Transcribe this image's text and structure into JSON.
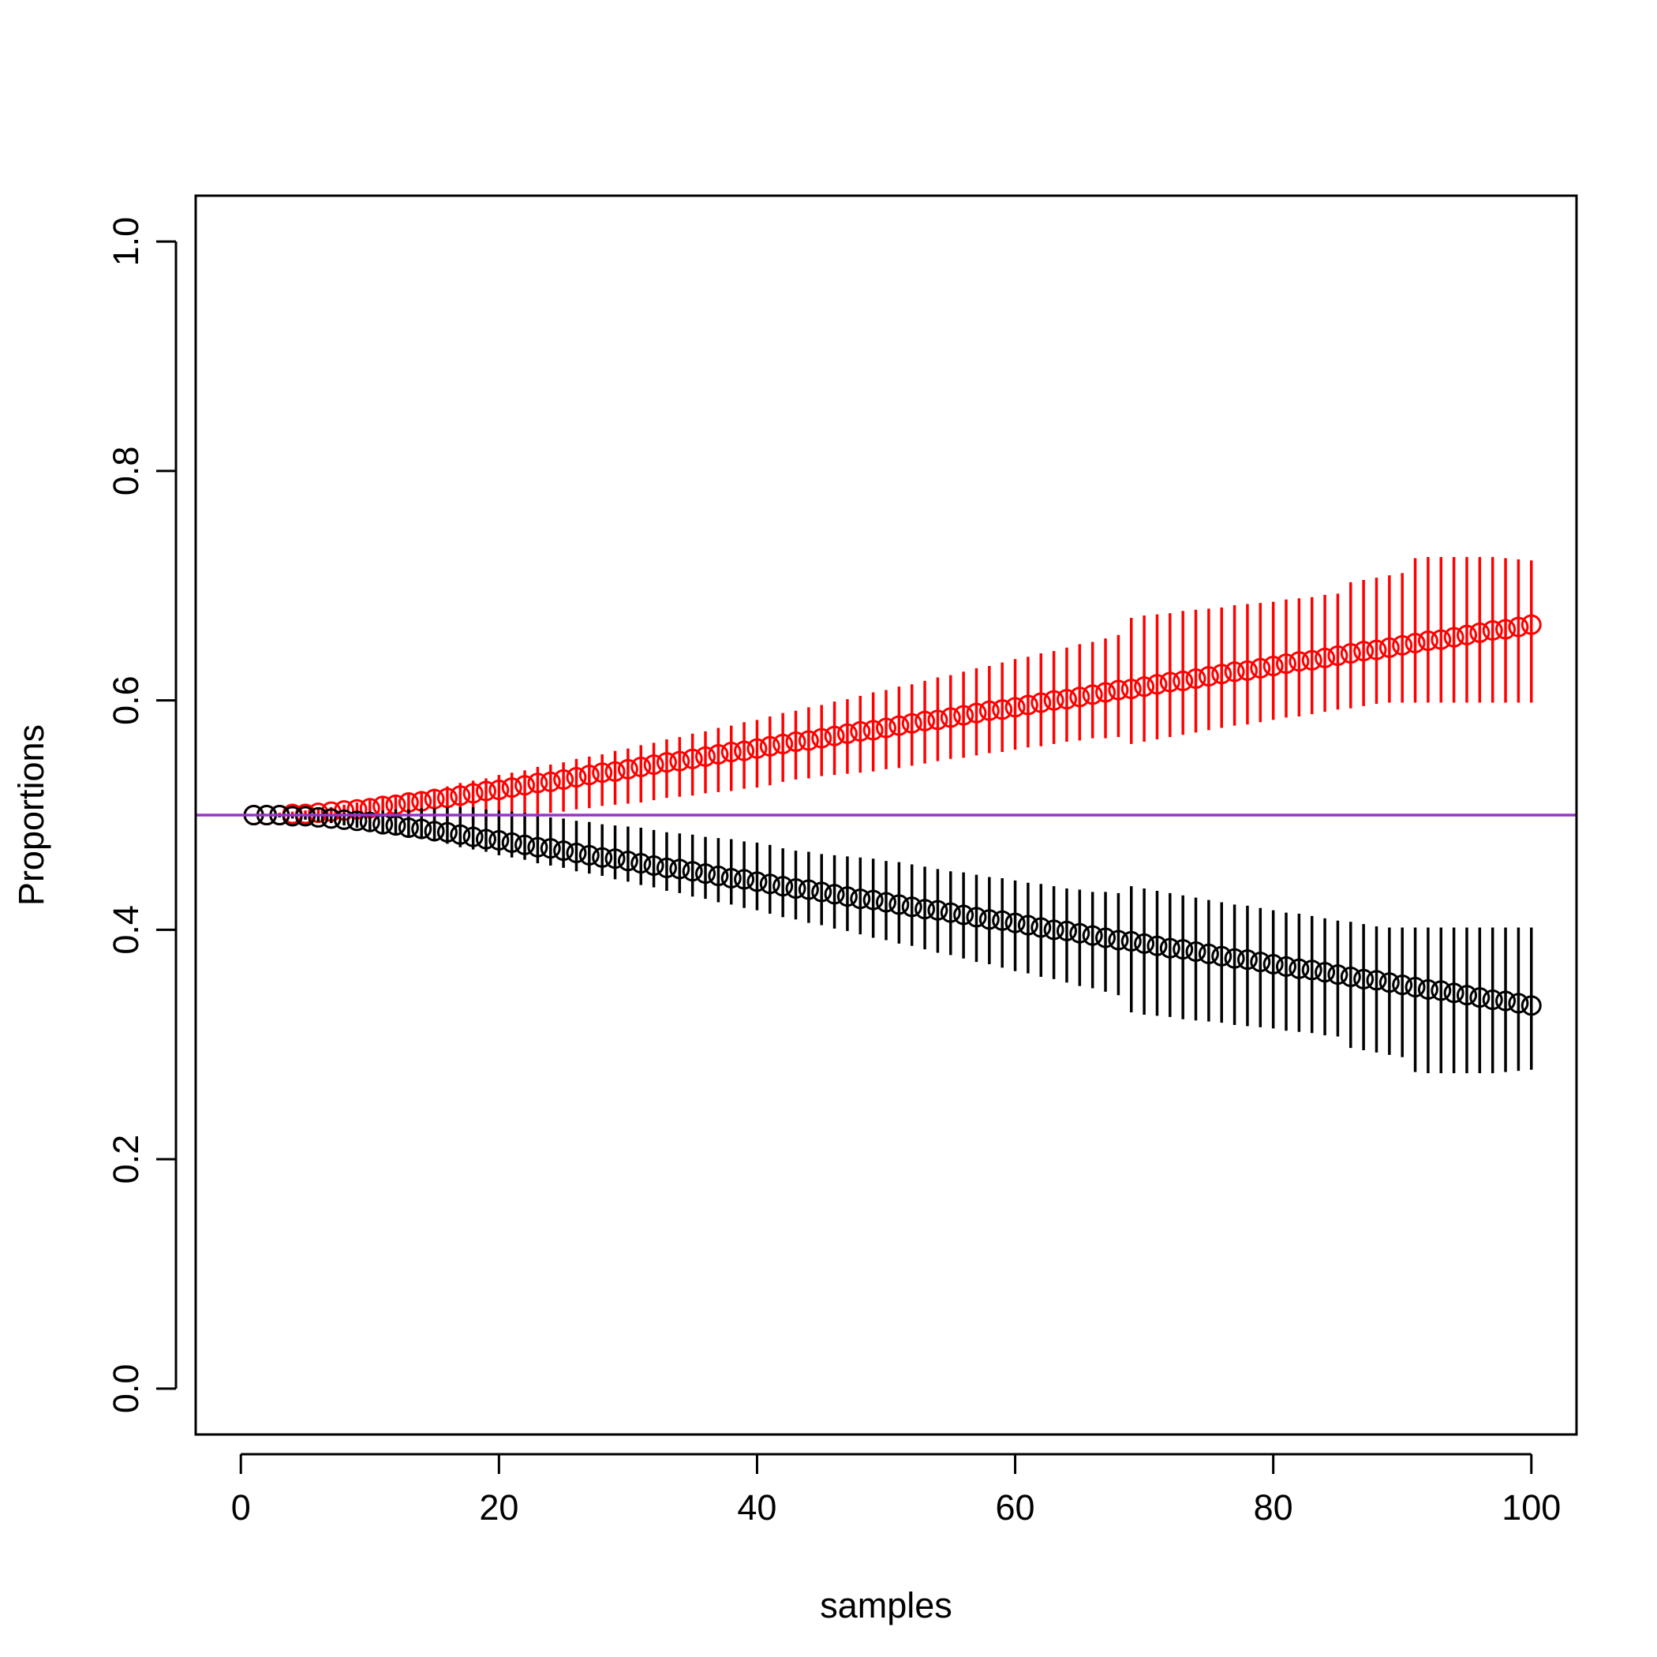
{
  "chart_data": {
    "type": "scatter",
    "title": "",
    "xlabel": "samples",
    "ylabel": "Proportions",
    "xlim": [
      -3.5,
      103.5
    ],
    "ylim": [
      -0.04,
      1.04
    ],
    "x_ticks": [
      0,
      20,
      40,
      60,
      80,
      100
    ],
    "y_ticks": [
      0.0,
      0.2,
      0.4,
      0.6,
      0.8,
      1.0
    ],
    "x_tick_labels": [
      "0",
      "20",
      "40",
      "60",
      "80",
      "100"
    ],
    "y_tick_labels": [
      "0.0",
      "0.2",
      "0.4",
      "0.6",
      "0.8",
      "1.0"
    ],
    "grid": false,
    "legend": "none",
    "reference_line": {
      "orientation": "horizontal",
      "y": 0.5,
      "color": "#9933cc"
    },
    "x": [
      1,
      2,
      3,
      4,
      5,
      6,
      7,
      8,
      9,
      10,
      11,
      12,
      13,
      14,
      15,
      16,
      17,
      18,
      19,
      20,
      21,
      22,
      23,
      24,
      25,
      26,
      27,
      28,
      29,
      30,
      31,
      32,
      33,
      34,
      35,
      36,
      37,
      38,
      39,
      40,
      41,
      42,
      43,
      44,
      45,
      46,
      47,
      48,
      49,
      50,
      51,
      52,
      53,
      54,
      55,
      56,
      57,
      58,
      59,
      60,
      61,
      62,
      63,
      64,
      65,
      66,
      67,
      68,
      69,
      70,
      71,
      72,
      73,
      74,
      75,
      76,
      77,
      78,
      79,
      80,
      81,
      82,
      83,
      84,
      85,
      86,
      87,
      88,
      89,
      90,
      91,
      92,
      93,
      94,
      95,
      96,
      97,
      98,
      99,
      100
    ],
    "series": [
      {
        "color": "#ff0000",
        "marker": "open-circle",
        "y": [
          0.5,
          0.5,
          0.5,
          0.501,
          0.501,
          0.502,
          0.503,
          0.504,
          0.505,
          0.506,
          0.508,
          0.509,
          0.511,
          0.512,
          0.514,
          0.515,
          0.517,
          0.519,
          0.521,
          0.522,
          0.524,
          0.526,
          0.528,
          0.529,
          0.531,
          0.533,
          0.535,
          0.537,
          0.538,
          0.54,
          0.542,
          0.544,
          0.546,
          0.547,
          0.549,
          0.551,
          0.553,
          0.555,
          0.556,
          0.558,
          0.56,
          0.562,
          0.564,
          0.565,
          0.567,
          0.569,
          0.571,
          0.573,
          0.574,
          0.576,
          0.578,
          0.58,
          0.582,
          0.583,
          0.585,
          0.587,
          0.589,
          0.591,
          0.592,
          0.594,
          0.596,
          0.598,
          0.6,
          0.601,
          0.603,
          0.605,
          0.607,
          0.609,
          0.61,
          0.612,
          0.614,
          0.616,
          0.617,
          0.619,
          0.621,
          0.623,
          0.625,
          0.626,
          0.628,
          0.63,
          0.632,
          0.634,
          0.635,
          0.637,
          0.639,
          0.641,
          0.643,
          0.644,
          0.646,
          0.648,
          0.65,
          0.652,
          0.653,
          0.655,
          0.657,
          0.659,
          0.661,
          0.662,
          0.664,
          0.666
        ],
        "lower": [
          0.5,
          0.5,
          0.5,
          0.5,
          0.499,
          0.499,
          0.499,
          0.498,
          0.497,
          0.497,
          0.496,
          0.495,
          0.495,
          0.494,
          0.494,
          0.493,
          0.493,
          0.493,
          0.495,
          0.496,
          0.497,
          0.498,
          0.5,
          0.502,
          0.503,
          0.505,
          0.506,
          0.508,
          0.509,
          0.51,
          0.511,
          0.513,
          0.515,
          0.516,
          0.517,
          0.519,
          0.52,
          0.521,
          0.523,
          0.524,
          0.526,
          0.529,
          0.531,
          0.532,
          0.534,
          0.535,
          0.536,
          0.537,
          0.538,
          0.54,
          0.541,
          0.543,
          0.545,
          0.547,
          0.549,
          0.55,
          0.552,
          0.554,
          0.555,
          0.557,
          0.559,
          0.56,
          0.562,
          0.564,
          0.565,
          0.567,
          0.567,
          0.568,
          0.562,
          0.564,
          0.566,
          0.568,
          0.57,
          0.572,
          0.574,
          0.576,
          0.578,
          0.579,
          0.581,
          0.583,
          0.585,
          0.586,
          0.588,
          0.59,
          0.592,
          0.593,
          0.595,
          0.597,
          0.598,
          0.598,
          0.598,
          0.598,
          0.598,
          0.598,
          0.598,
          0.598,
          0.598,
          0.598,
          0.598,
          0.598
        ],
        "upper": [
          0.5,
          0.501,
          0.502,
          0.503,
          0.504,
          0.506,
          0.507,
          0.509,
          0.511,
          0.513,
          0.515,
          0.517,
          0.519,
          0.521,
          0.523,
          0.525,
          0.528,
          0.53,
          0.532,
          0.535,
          0.537,
          0.539,
          0.542,
          0.544,
          0.546,
          0.549,
          0.551,
          0.553,
          0.556,
          0.558,
          0.561,
          0.563,
          0.566,
          0.568,
          0.571,
          0.573,
          0.576,
          0.578,
          0.581,
          0.583,
          0.586,
          0.589,
          0.591,
          0.594,
          0.596,
          0.599,
          0.601,
          0.604,
          0.607,
          0.609,
          0.612,
          0.614,
          0.617,
          0.62,
          0.622,
          0.625,
          0.628,
          0.63,
          0.633,
          0.636,
          0.638,
          0.641,
          0.643,
          0.646,
          0.649,
          0.651,
          0.654,
          0.657,
          0.672,
          0.674,
          0.675,
          0.676,
          0.678,
          0.679,
          0.68,
          0.681,
          0.683,
          0.684,
          0.685,
          0.686,
          0.688,
          0.689,
          0.69,
          0.692,
          0.693,
          0.703,
          0.705,
          0.707,
          0.709,
          0.711,
          0.724,
          0.725,
          0.725,
          0.725,
          0.725,
          0.725,
          0.725,
          0.724,
          0.723,
          0.722
        ]
      },
      {
        "color": "#000000",
        "marker": "open-circle",
        "y": [
          0.5,
          0.5,
          0.5,
          0.499,
          0.499,
          0.498,
          0.497,
          0.496,
          0.495,
          0.494,
          0.492,
          0.491,
          0.489,
          0.488,
          0.486,
          0.485,
          0.483,
          0.481,
          0.479,
          0.478,
          0.476,
          0.474,
          0.472,
          0.471,
          0.469,
          0.467,
          0.465,
          0.463,
          0.462,
          0.46,
          0.458,
          0.456,
          0.454,
          0.453,
          0.451,
          0.449,
          0.447,
          0.445,
          0.444,
          0.442,
          0.44,
          0.438,
          0.436,
          0.435,
          0.433,
          0.431,
          0.429,
          0.427,
          0.426,
          0.424,
          0.422,
          0.42,
          0.418,
          0.417,
          0.415,
          0.413,
          0.411,
          0.409,
          0.408,
          0.406,
          0.404,
          0.402,
          0.4,
          0.399,
          0.397,
          0.395,
          0.393,
          0.391,
          0.39,
          0.388,
          0.386,
          0.384,
          0.383,
          0.381,
          0.379,
          0.377,
          0.375,
          0.374,
          0.372,
          0.37,
          0.368,
          0.366,
          0.365,
          0.363,
          0.361,
          0.359,
          0.357,
          0.356,
          0.354,
          0.352,
          0.35,
          0.348,
          0.347,
          0.345,
          0.343,
          0.341,
          0.339,
          0.338,
          0.336,
          0.334
        ],
        "lower": [
          0.5,
          0.499,
          0.498,
          0.497,
          0.496,
          0.494,
          0.493,
          0.491,
          0.489,
          0.487,
          0.485,
          0.483,
          0.481,
          0.479,
          0.477,
          0.475,
          0.472,
          0.47,
          0.468,
          0.465,
          0.463,
          0.461,
          0.458,
          0.456,
          0.454,
          0.451,
          0.449,
          0.447,
          0.444,
          0.442,
          0.439,
          0.437,
          0.434,
          0.432,
          0.429,
          0.427,
          0.424,
          0.422,
          0.419,
          0.417,
          0.414,
          0.411,
          0.409,
          0.406,
          0.404,
          0.401,
          0.399,
          0.396,
          0.393,
          0.391,
          0.388,
          0.386,
          0.383,
          0.38,
          0.378,
          0.375,
          0.372,
          0.37,
          0.367,
          0.364,
          0.362,
          0.359,
          0.357,
          0.354,
          0.351,
          0.349,
          0.346,
          0.343,
          0.328,
          0.326,
          0.325,
          0.324,
          0.322,
          0.321,
          0.32,
          0.319,
          0.317,
          0.316,
          0.315,
          0.314,
          0.312,
          0.311,
          0.31,
          0.308,
          0.307,
          0.297,
          0.295,
          0.293,
          0.291,
          0.289,
          0.276,
          0.275,
          0.275,
          0.275,
          0.275,
          0.275,
          0.275,
          0.276,
          0.277,
          0.278
        ],
        "upper": [
          0.5,
          0.5,
          0.5,
          0.5,
          0.501,
          0.501,
          0.501,
          0.502,
          0.503,
          0.503,
          0.504,
          0.505,
          0.505,
          0.506,
          0.506,
          0.507,
          0.507,
          0.507,
          0.505,
          0.504,
          0.503,
          0.502,
          0.5,
          0.498,
          0.497,
          0.495,
          0.494,
          0.492,
          0.491,
          0.49,
          0.489,
          0.487,
          0.485,
          0.484,
          0.483,
          0.481,
          0.48,
          0.479,
          0.477,
          0.476,
          0.474,
          0.471,
          0.469,
          0.468,
          0.466,
          0.465,
          0.464,
          0.463,
          0.462,
          0.46,
          0.459,
          0.457,
          0.455,
          0.453,
          0.451,
          0.45,
          0.448,
          0.446,
          0.445,
          0.443,
          0.441,
          0.44,
          0.438,
          0.436,
          0.435,
          0.433,
          0.433,
          0.432,
          0.438,
          0.436,
          0.434,
          0.432,
          0.43,
          0.428,
          0.426,
          0.424,
          0.422,
          0.421,
          0.419,
          0.417,
          0.415,
          0.414,
          0.412,
          0.41,
          0.408,
          0.407,
          0.405,
          0.403,
          0.402,
          0.402,
          0.402,
          0.402,
          0.402,
          0.402,
          0.402,
          0.402,
          0.402,
          0.402,
          0.402,
          0.402
        ]
      }
    ]
  }
}
